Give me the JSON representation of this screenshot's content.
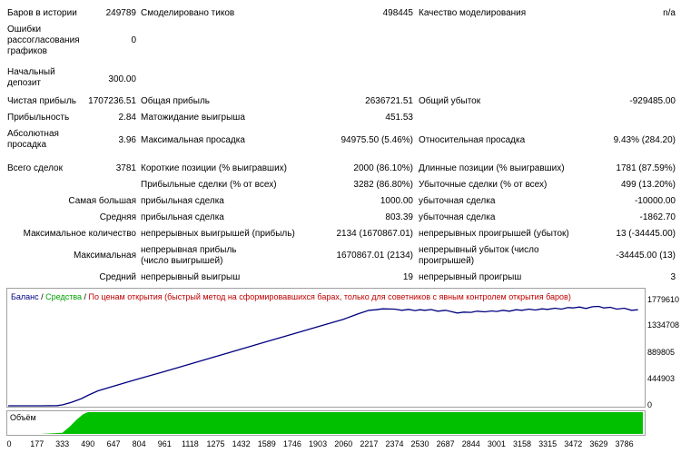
{
  "stats": {
    "row1": {
      "bars_label": "Баров в истории",
      "bars_value": "249789",
      "ticks_label": "Смоделировано тиков",
      "ticks_value": "498445",
      "quality_label": "Качество моделирования",
      "quality_value": "n/a"
    },
    "mismatch_label": "Ошибки рассогласования графиков",
    "mismatch_value": "0",
    "deposit_label": "Начальный депозит",
    "deposit_value": "300.00",
    "row_profit": {
      "net_label": "Чистая прибыль",
      "net_value": "1707236.51",
      "gross_label": "Общая прибыль",
      "gross_value": "2636721.51",
      "loss_label": "Общий убыток",
      "loss_value": "-929485.00"
    },
    "row_factor": {
      "pf_label": "Прибыльность",
      "pf_value": "2.84",
      "exp_label": "Матожидание выигрыша",
      "exp_value": "451.53"
    },
    "row_dd": {
      "abs_label": "Абсолютная просадка",
      "abs_value": "3.96",
      "max_label": "Максимальная просадка",
      "max_value": "94975.50 (5.46%)",
      "rel_label": "Относительная просадка",
      "rel_value": "9.43% (284.20)"
    },
    "row_trades": {
      "total_label": "Всего сделок",
      "total_value": "3781",
      "short_label": "Короткие позиции (% выигравших)",
      "short_value": "2000 (86.10%)",
      "long_label": "Длинные позиции (% выигравших)",
      "long_value": "1781 (87.59%)"
    },
    "row_pct": {
      "win_label": "Прибыльные сделки (% от всех)",
      "win_value": "3282 (86.80%)",
      "lose_label": "Убыточные сделки (% от всех)",
      "lose_value": "499 (13.20%)"
    },
    "row_largest": {
      "label": "Самая большая",
      "win_label": "прибыльная сделка",
      "win_value": "1000.00",
      "lose_label": "убыточная сделка",
      "lose_value": "-10000.00"
    },
    "row_average": {
      "label": "Средняя",
      "win_label": "прибыльная сделка",
      "win_value": "803.39",
      "lose_label": "убыточная сделка",
      "lose_value": "-1862.70"
    },
    "row_maxcount": {
      "label": "Максимальное количество",
      "win_label": "непрерывных выигрышей (прибыль)",
      "win_value": "2134 (1670867.01)",
      "lose_label": "непрерывных проигрышей (убыток)",
      "lose_value": "13 (-34445.00)"
    },
    "row_maxsum": {
      "label": "Максимальная",
      "win_label": "непрерывная прибыль (число выигрышей)",
      "win_value": "1670867.01 (2134)",
      "lose_label": "непрерывный убыток (число проигрышей)",
      "lose_value": "-34445.00 (13)"
    },
    "row_avgcons": {
      "label": "Средний",
      "win_label": "непрерывный выигрыш",
      "win_value": "19",
      "lose_label": "непрерывный проигрыш",
      "lose_value": "3"
    }
  },
  "chart_data": {
    "type": "line",
    "legend": {
      "balance": "Баланс",
      "sep1": " / ",
      "equity": "Средства",
      "sep2": " / ",
      "method": "По ценам открытия (быстрый метод на сформировавшихся барах, только для советников с явным контролем открытия баров)"
    },
    "colors": {
      "balance": "#000080",
      "equity": "#00a000",
      "method": "#c00000",
      "volume": "#00c000"
    },
    "y_ticks": [
      "1779610",
      "1334708",
      "889805",
      "444903",
      "0"
    ],
    "ylim": [
      0,
      1779610
    ],
    "x_ticks": [
      "0",
      "177",
      "333",
      "490",
      "647",
      "804",
      "961",
      "1118",
      "1275",
      "1432",
      "1589",
      "1746",
      "1903",
      "2060",
      "2217",
      "2374",
      "2530",
      "2687",
      "2844",
      "3001",
      "3158",
      "3315",
      "3472",
      "3629",
      "3786"
    ],
    "xlim": [
      0,
      3900
    ],
    "series": [
      {
        "name": "Баланс",
        "x": [
          0,
          100,
          200,
          300,
          333,
          390,
          450,
          490,
          550,
          650,
          800,
          961,
          1118,
          1275,
          1432,
          1589,
          1746,
          1903,
          2060,
          2150,
          2217,
          2260,
          2300,
          2374,
          2420,
          2460,
          2500,
          2530,
          2560,
          2600,
          2640,
          2687,
          2720,
          2760,
          2800,
          2844,
          2880,
          2930,
          2970,
          3001,
          3040,
          3080,
          3120,
          3158,
          3200,
          3240,
          3280,
          3315,
          3360,
          3400,
          3440,
          3472,
          3510,
          3550,
          3590,
          3629,
          3660,
          3700,
          3740,
          3786,
          3830,
          3870
        ],
        "y": [
          300,
          300,
          300,
          2500,
          15000,
          60000,
          120000,
          175000,
          250000,
          330000,
          450000,
          575000,
          700000,
          825000,
          950000,
          1075000,
          1200000,
          1325000,
          1450000,
          1540000,
          1600000,
          1610000,
          1625000,
          1620000,
          1600000,
          1615000,
          1595000,
          1610000,
          1600000,
          1612000,
          1585000,
          1600000,
          1580000,
          1555000,
          1570000,
          1565000,
          1585000,
          1575000,
          1590000,
          1580000,
          1600000,
          1585000,
          1610000,
          1600000,
          1620000,
          1605000,
          1625000,
          1615000,
          1635000,
          1620000,
          1645000,
          1640000,
          1655000,
          1630000,
          1660000,
          1665000,
          1640000,
          1650000,
          1620000,
          1635000,
          1600000,
          1610000
        ]
      }
    ],
    "volume": {
      "label": "Объём",
      "x": [
        0,
        200,
        333,
        380,
        420,
        460,
        490,
        3900
      ],
      "level": [
        0,
        0,
        0.05,
        0.35,
        0.65,
        0.9,
        1,
        1
      ]
    }
  }
}
